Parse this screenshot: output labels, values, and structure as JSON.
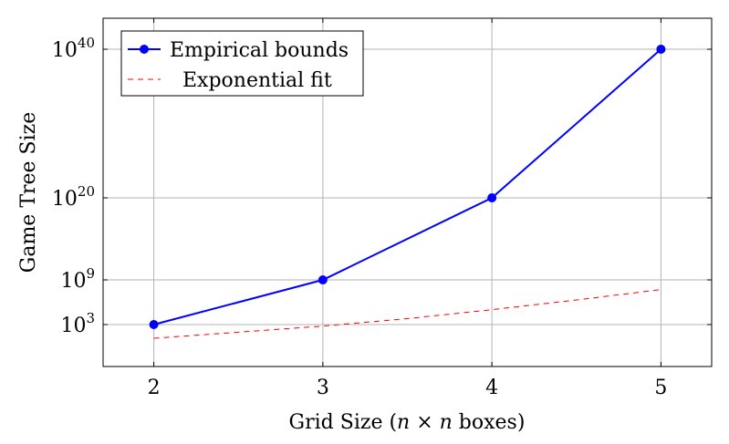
{
  "chart_data": {
    "type": "line",
    "title": "",
    "xlabel": "Grid Size (n × n boxes)",
    "ylabel": "Game Tree Size",
    "x": [
      2,
      3,
      4,
      5
    ],
    "x_tick_labels": [
      "2",
      "3",
      "4",
      "5"
    ],
    "xlim": [
      1.7,
      5.3
    ],
    "y_tick_values": [
      3,
      9,
      20,
      40
    ],
    "y_tick_bases": [
      "10",
      "10",
      "10",
      "10"
    ],
    "y_tick_exponents": [
      "3",
      "9",
      "20",
      "40"
    ],
    "y_scale": "piecewise log (exponent positions)",
    "ylim_exponent": [
      -2.5,
      44
    ],
    "grid": true,
    "legend_position": "top-left",
    "series": [
      {
        "name": "Empirical bounds",
        "color": "#0000ff",
        "style": "solid",
        "marker": "circle",
        "x": [
          2,
          3,
          4,
          5
        ],
        "y_exponent": [
          3,
          9,
          20,
          40
        ]
      },
      {
        "name": "Exponential fit",
        "color": "#ff0000",
        "style": "dashed",
        "marker": "none",
        "x": [
          2,
          2.5,
          3,
          3.5,
          4,
          4.5,
          5
        ],
        "y_exponent": [
          1.2,
          2.0,
          2.8,
          3.8,
          5.0,
          6.3,
          7.7
        ]
      }
    ]
  }
}
